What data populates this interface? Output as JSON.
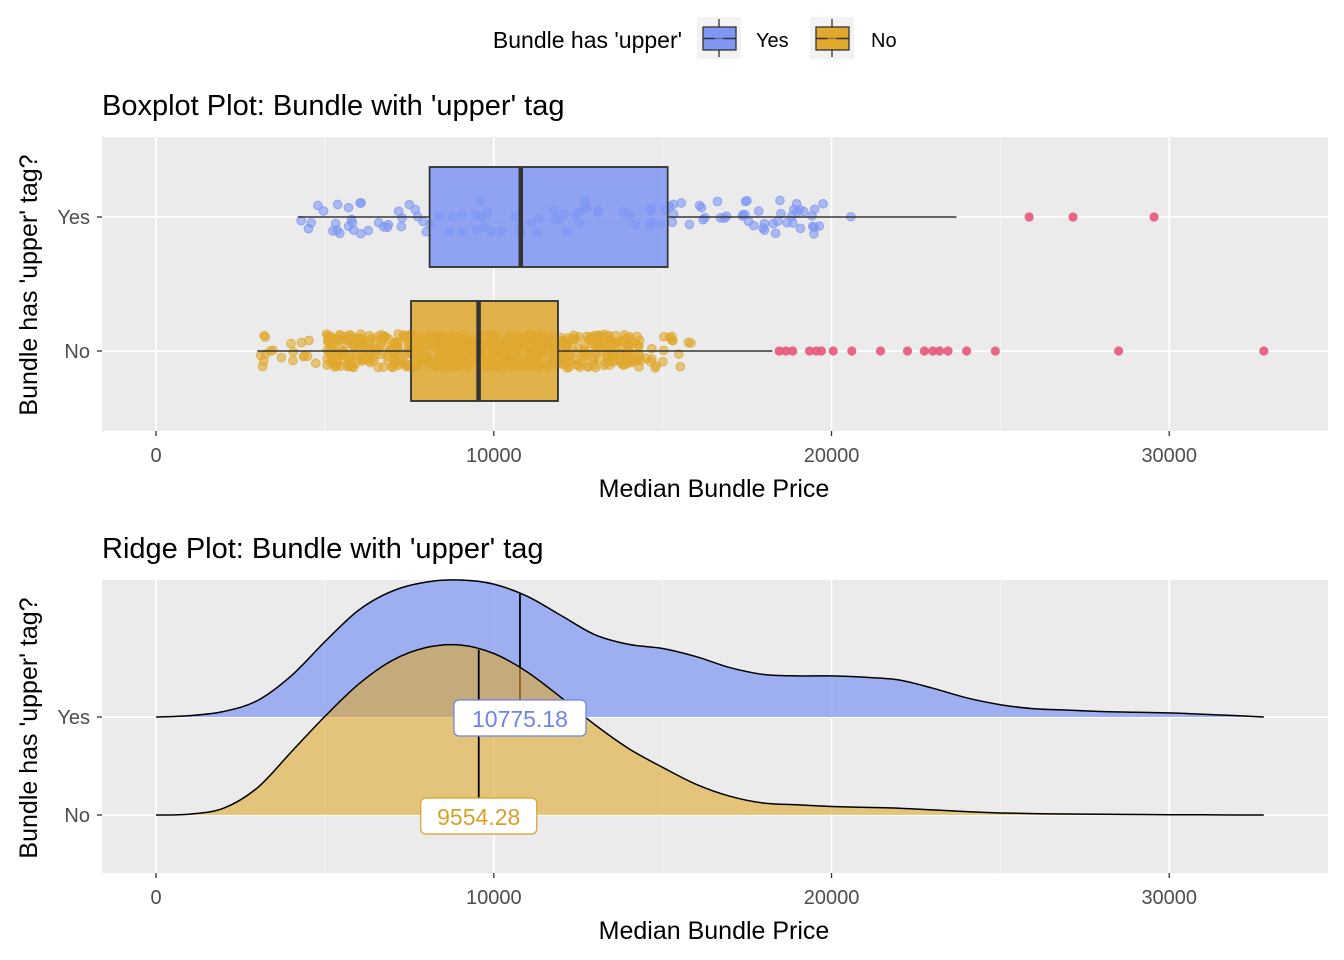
{
  "legend": {
    "title": "Bundle has 'upper'",
    "position": "top",
    "entries": [
      {
        "label": "Yes",
        "color": "#7F97F3"
      },
      {
        "label": "No",
        "color": "#E0A82E"
      }
    ]
  },
  "colors": {
    "yes_fill": "#7F97F3",
    "yes_label": "#6D85E8",
    "no_fill": "#E0A82E",
    "no_label": "#D9A02A",
    "outlier": "#E8557A",
    "panel_bg": "#EBEBEB",
    "grid": "#FFFFFF"
  },
  "chart_data": [
    {
      "type": "boxplot",
      "title": "Boxplot Plot: Bundle with 'upper' tag",
      "xlabel": "Median Bundle Price",
      "ylabel": "Bundle has 'upper' tag?",
      "xlim": [
        -1600,
        34700
      ],
      "xticks": [
        0,
        10000,
        20000,
        30000
      ],
      "grid": true,
      "categories": [
        "Yes",
        "No"
      ],
      "boxes": [
        {
          "name": "Yes",
          "whisker_low": 4200,
          "q1": 8100,
          "median": 10800,
          "q3": 15150,
          "whisker_high": 23700,
          "jitter_range": [
            4200,
            20600
          ],
          "outliers": [
            25850,
            27150,
            29550
          ]
        },
        {
          "name": "No",
          "whisker_low": 3000,
          "q1": 7550,
          "median": 9550,
          "q3": 11900,
          "whisker_high": 18250,
          "jitter_range": [
            3000,
            16000
          ],
          "outliers": [
            18450,
            18650,
            18850,
            19350,
            19550,
            19700,
            20050,
            20600,
            21450,
            22250,
            22750,
            23000,
            23200,
            23450,
            24000,
            24850,
            28500,
            32800
          ]
        }
      ]
    },
    {
      "type": "ridgeline",
      "title": "Ridge Plot: Bundle with 'upper' tag",
      "xlabel": "Median Bundle Price",
      "ylabel": "Bundle has 'upper' tag?",
      "xlim": [
        -1600,
        34700
      ],
      "xticks": [
        0,
        10000,
        20000,
        30000
      ],
      "grid": true,
      "categories": [
        "Yes",
        "No"
      ],
      "series": [
        {
          "name": "Yes",
          "median": 10775.18,
          "median_label": "10775.18",
          "x": [
            0,
            1000,
            2000,
            3000,
            4000,
            5000,
            6000,
            7000,
            8000,
            9000,
            10000,
            11000,
            12000,
            13000,
            14000,
            15000,
            16000,
            17000,
            18000,
            19000,
            20000,
            21000,
            22000,
            23000,
            24000,
            25000,
            26000,
            27000,
            28000,
            29000,
            30000,
            31000,
            32000,
            32800
          ],
          "density": [
            0.0,
            0.01,
            0.04,
            0.12,
            0.3,
            0.55,
            0.78,
            0.92,
            0.985,
            1.0,
            0.97,
            0.88,
            0.74,
            0.6,
            0.53,
            0.5,
            0.44,
            0.36,
            0.31,
            0.3,
            0.3,
            0.29,
            0.27,
            0.21,
            0.14,
            0.09,
            0.06,
            0.05,
            0.04,
            0.035,
            0.03,
            0.02,
            0.01,
            0.0
          ]
        },
        {
          "name": "No",
          "median": 9554.28,
          "median_label": "9554.28",
          "x": [
            0,
            1000,
            2000,
            3000,
            4000,
            5000,
            6000,
            7000,
            8000,
            9000,
            10000,
            11000,
            12000,
            13000,
            14000,
            15000,
            16000,
            17000,
            18000,
            19000,
            20000,
            21000,
            22000,
            23000,
            24000,
            25000,
            26000,
            27000,
            28000,
            29000,
            30000,
            31000,
            32000,
            32800
          ],
          "density": [
            0.0,
            0.005,
            0.04,
            0.16,
            0.37,
            0.58,
            0.77,
            0.91,
            0.985,
            1.0,
            0.95,
            0.84,
            0.69,
            0.53,
            0.39,
            0.28,
            0.18,
            0.11,
            0.07,
            0.06,
            0.05,
            0.045,
            0.04,
            0.03,
            0.02,
            0.012,
            0.008,
            0.006,
            0.004,
            0.003,
            0.002,
            0.001,
            0.0,
            0.0
          ]
        }
      ]
    }
  ]
}
